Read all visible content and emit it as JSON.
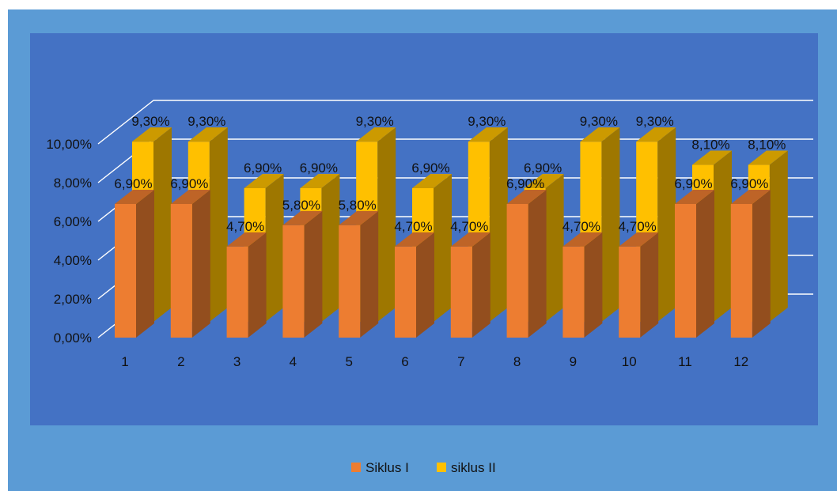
{
  "chart_data": {
    "type": "bar",
    "title": "",
    "xlabel": "",
    "ylabel": "",
    "categories": [
      "1",
      "2",
      "3",
      "4",
      "5",
      "6",
      "7",
      "8",
      "9",
      "10",
      "11",
      "12"
    ],
    "series": [
      {
        "name": "Siklus I",
        "values": [
          6.9,
          6.9,
          4.7,
          5.8,
          5.8,
          4.7,
          4.7,
          6.9,
          4.7,
          4.7,
          6.9,
          6.9
        ],
        "labels": [
          "6,90%",
          "6,90%",
          "4,70%",
          "5,80%",
          "5,80%",
          "4,70%",
          "4,70%",
          "6,90%",
          "4,70%",
          "4,70%",
          "6,90%",
          "6,90%"
        ],
        "color": "#ED7D31"
      },
      {
        "name": "siklus II",
        "values": [
          9.3,
          9.3,
          6.9,
          6.9,
          9.3,
          6.9,
          9.3,
          6.9,
          9.3,
          9.3,
          8.1,
          8.1
        ],
        "labels": [
          "9,30%",
          "9,30%",
          "6,90%",
          "6,90%",
          "9,30%",
          "6,90%",
          "9,30%",
          "6,90%",
          "9,30%",
          "9,30%",
          "8,10%",
          "8,10%"
        ],
        "color": "#FFC000"
      }
    ],
    "y_ticks": [
      "0,00%",
      "2,00%",
      "4,00%",
      "6,00%",
      "8,00%",
      "10,00%"
    ],
    "ylim": [
      0,
      10
    ],
    "grid": true,
    "legend_position": "bottom",
    "style": "3d-clustered-column",
    "colors": {
      "outer_background": "#5B9BD5",
      "plot_background": "#4472C4",
      "gridline": "#FFFFFF",
      "text": "#111111"
    }
  }
}
